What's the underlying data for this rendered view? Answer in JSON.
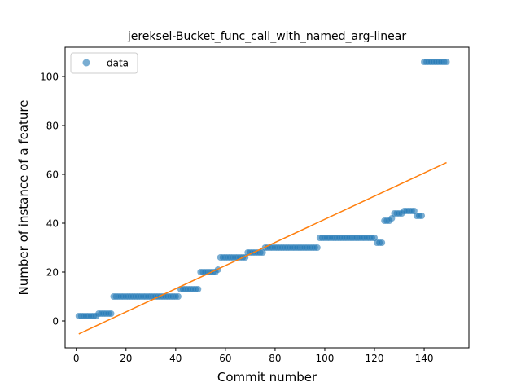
{
  "chart_data": {
    "type": "scatter",
    "title": "jereksel-Bucket_func_call_with_named_arg-linear",
    "xlabel": "Commit number",
    "ylabel": "Number of instance of a feature",
    "xlim": [
      -4.5,
      158
    ],
    "ylim": [
      -11,
      112
    ],
    "xticks": [
      0,
      20,
      40,
      60,
      80,
      100,
      120,
      140
    ],
    "yticks": [
      0,
      20,
      40,
      60,
      80,
      100
    ],
    "grid": false,
    "legend": {
      "position": "top-left",
      "entries": [
        "data"
      ]
    },
    "colors": {
      "data": "#1f77b4",
      "fit": "#ff7f0e"
    },
    "series": [
      {
        "name": "data",
        "kind": "scatter",
        "points": [
          [
            1,
            2
          ],
          [
            2,
            2
          ],
          [
            3,
            2
          ],
          [
            4,
            2
          ],
          [
            5,
            2
          ],
          [
            6,
            2
          ],
          [
            7,
            2
          ],
          [
            8,
            2
          ],
          [
            9,
            3
          ],
          [
            10,
            3
          ],
          [
            11,
            3
          ],
          [
            12,
            3
          ],
          [
            13,
            3
          ],
          [
            14,
            3
          ],
          [
            15,
            10
          ],
          [
            16,
            10
          ],
          [
            17,
            10
          ],
          [
            18,
            10
          ],
          [
            19,
            10
          ],
          [
            20,
            10
          ],
          [
            21,
            10
          ],
          [
            22,
            10
          ],
          [
            23,
            10
          ],
          [
            24,
            10
          ],
          [
            25,
            10
          ],
          [
            26,
            10
          ],
          [
            27,
            10
          ],
          [
            28,
            10
          ],
          [
            29,
            10
          ],
          [
            30,
            10
          ],
          [
            31,
            10
          ],
          [
            32,
            10
          ],
          [
            33,
            10
          ],
          [
            34,
            10
          ],
          [
            35,
            10
          ],
          [
            36,
            10
          ],
          [
            37,
            10
          ],
          [
            38,
            10
          ],
          [
            39,
            10
          ],
          [
            40,
            10
          ],
          [
            41,
            10
          ],
          [
            42,
            13
          ],
          [
            43,
            13
          ],
          [
            44,
            13
          ],
          [
            45,
            13
          ],
          [
            46,
            13
          ],
          [
            47,
            13
          ],
          [
            48,
            13
          ],
          [
            49,
            13
          ],
          [
            50,
            20
          ],
          [
            51,
            20
          ],
          [
            52,
            20
          ],
          [
            53,
            20
          ],
          [
            54,
            20
          ],
          [
            55,
            20
          ],
          [
            56,
            20
          ],
          [
            57,
            21
          ],
          [
            58,
            26
          ],
          [
            59,
            26
          ],
          [
            60,
            26
          ],
          [
            61,
            26
          ],
          [
            62,
            26
          ],
          [
            63,
            26
          ],
          [
            64,
            26
          ],
          [
            65,
            26
          ],
          [
            66,
            26
          ],
          [
            67,
            26
          ],
          [
            68,
            26
          ],
          [
            69,
            28
          ],
          [
            70,
            28
          ],
          [
            71,
            28
          ],
          [
            72,
            28
          ],
          [
            73,
            28
          ],
          [
            74,
            28
          ],
          [
            75,
            28
          ],
          [
            76,
            30
          ],
          [
            77,
            30
          ],
          [
            78,
            30
          ],
          [
            79,
            30
          ],
          [
            80,
            30
          ],
          [
            81,
            30
          ],
          [
            82,
            30
          ],
          [
            83,
            30
          ],
          [
            84,
            30
          ],
          [
            85,
            30
          ],
          [
            86,
            30
          ],
          [
            87,
            30
          ],
          [
            88,
            30
          ],
          [
            89,
            30
          ],
          [
            90,
            30
          ],
          [
            91,
            30
          ],
          [
            92,
            30
          ],
          [
            93,
            30
          ],
          [
            94,
            30
          ],
          [
            95,
            30
          ],
          [
            96,
            30
          ],
          [
            97,
            30
          ],
          [
            98,
            34
          ],
          [
            99,
            34
          ],
          [
            100,
            34
          ],
          [
            101,
            34
          ],
          [
            102,
            34
          ],
          [
            103,
            34
          ],
          [
            104,
            34
          ],
          [
            105,
            34
          ],
          [
            106,
            34
          ],
          [
            107,
            34
          ],
          [
            108,
            34
          ],
          [
            109,
            34
          ],
          [
            110,
            34
          ],
          [
            111,
            34
          ],
          [
            112,
            34
          ],
          [
            113,
            34
          ],
          [
            114,
            34
          ],
          [
            115,
            34
          ],
          [
            116,
            34
          ],
          [
            117,
            34
          ],
          [
            118,
            34
          ],
          [
            119,
            34
          ],
          [
            120,
            34
          ],
          [
            121,
            32
          ],
          [
            122,
            32
          ],
          [
            123,
            32
          ],
          [
            124,
            41
          ],
          [
            125,
            41
          ],
          [
            126,
            41
          ],
          [
            127,
            42
          ],
          [
            128,
            44
          ],
          [
            129,
            44
          ],
          [
            130,
            44
          ],
          [
            131,
            44
          ],
          [
            132,
            45
          ],
          [
            133,
            45
          ],
          [
            134,
            45
          ],
          [
            135,
            45
          ],
          [
            136,
            45
          ],
          [
            137,
            43
          ],
          [
            138,
            43
          ],
          [
            139,
            43
          ],
          [
            140,
            106
          ],
          [
            141,
            106
          ],
          [
            142,
            106
          ],
          [
            143,
            106
          ],
          [
            144,
            106
          ],
          [
            145,
            106
          ],
          [
            146,
            106
          ],
          [
            147,
            106
          ],
          [
            148,
            106
          ],
          [
            149,
            106
          ]
        ]
      },
      {
        "kind": "line",
        "points": [
          [
            1,
            -5.3
          ],
          [
            149,
            64.8
          ]
        ]
      }
    ]
  }
}
